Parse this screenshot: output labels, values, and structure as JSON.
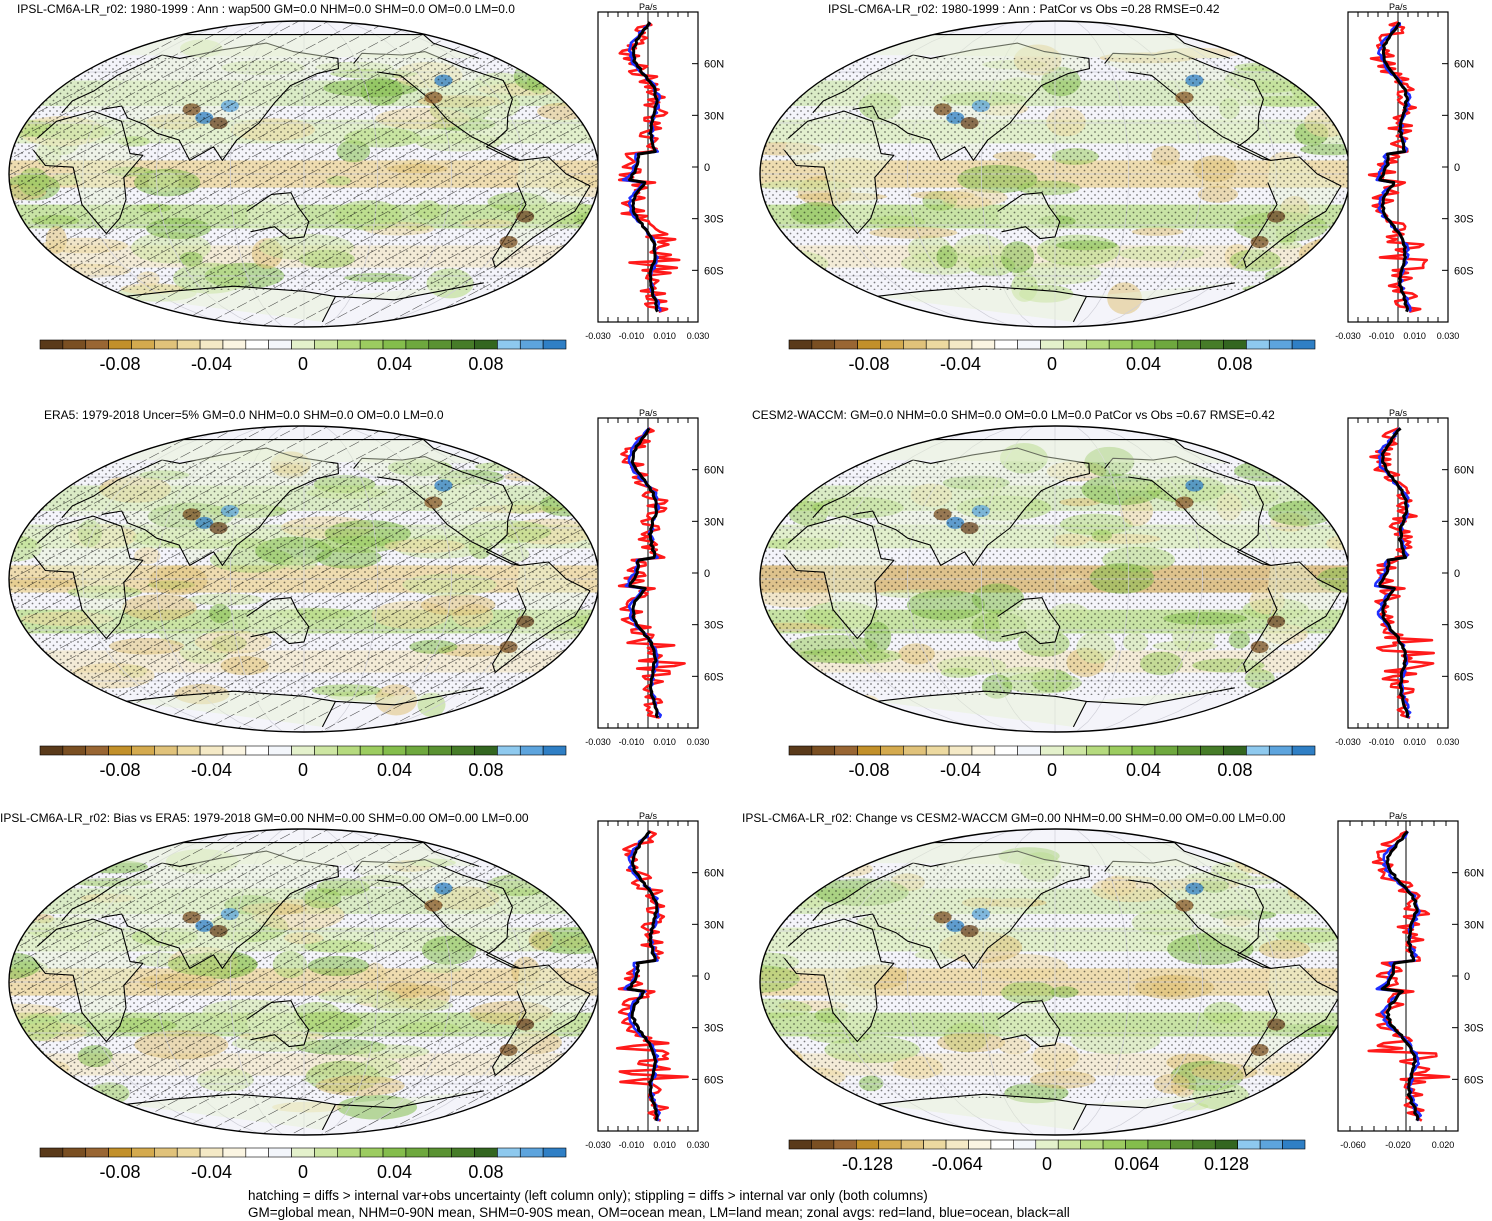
{
  "panels": [
    {
      "title": "IPSL-CM6A-LR_r02: 1980-1999 : Ann : wap500 GM=0.0 NHM=0.0 SHM=0.0 OM=0.0 LM=0.0",
      "hatch": true,
      "cbar_ticks": [
        "-0.08",
        "-0.04",
        "0",
        "0.04",
        "0.08"
      ],
      "zonal_unit": "Pa/s",
      "zonal_xticks": [
        "-0.030",
        "-0.010",
        "0.010",
        "0.030"
      ],
      "zonal_lat_labels": [
        "60N",
        "30N",
        "0",
        "30S",
        "60S"
      ]
    },
    {
      "title": "IPSL-CM6A-LR_r02: 1980-1999 : Ann : PatCor vs Obs =0.28 RMSE=0.42",
      "hatch": false,
      "cbar_ticks": [
        "-0.08",
        "-0.04",
        "0",
        "0.04",
        "0.08"
      ],
      "zonal_unit": "Pa/s",
      "zonal_xticks": [
        "-0.030",
        "-0.010",
        "0.010",
        "0.030"
      ],
      "zonal_lat_labels": [
        "60N",
        "30N",
        "0",
        "30S",
        "60S"
      ]
    },
    {
      "title": "ERA5: 1979-2018 Uncer=5% GM=0.0 NHM=0.0 SHM=0.0 OM=0.0 LM=0.0",
      "hatch": true,
      "cbar_ticks": [
        "-0.08",
        "-0.04",
        "0",
        "0.04",
        "0.08"
      ],
      "zonal_unit": "Pa/s",
      "zonal_xticks": [
        "-0.030",
        "-0.010",
        "0.010",
        "0.030"
      ],
      "zonal_lat_labels": [
        "60N",
        "30N",
        "0",
        "30S",
        "60S"
      ]
    },
    {
      "title": "CESM2-WACCM: GM=0.0 NHM=0.0 SHM=0.0 OM=0.0 LM=0.0 PatCor vs Obs =0.67 RMSE=0.42",
      "hatch": false,
      "cbar_ticks": [
        "-0.08",
        "-0.04",
        "0",
        "0.04",
        "0.08"
      ],
      "zonal_unit": "Pa/s",
      "zonal_xticks": [
        "-0.030",
        "-0.010",
        "0.010",
        "0.030"
      ],
      "zonal_lat_labels": [
        "60N",
        "30N",
        "0",
        "30S",
        "60S"
      ]
    },
    {
      "title": "IPSL-CM6A-LR_r02: Bias vs ERA5: 1979-2018 GM=0.00 NHM=0.00 SHM=0.00 OM=0.00 LM=0.00",
      "hatch": true,
      "cbar_ticks": [
        "-0.08",
        "-0.04",
        "0",
        "0.04",
        "0.08"
      ],
      "zonal_unit": "Pa/s",
      "zonal_xticks": [
        "-0.030",
        "-0.010",
        "0.010",
        "0.030"
      ],
      "zonal_lat_labels": [
        "60N",
        "30N",
        "0",
        "30S",
        "60S"
      ]
    },
    {
      "title": "IPSL-CM6A-LR_r02: Change vs CESM2-WACCM GM=0.00 NHM=0.00 SHM=0.00 OM=0.00 LM=0.00",
      "hatch": false,
      "cbar_ticks": [
        "-0.128",
        "-0.064",
        "0",
        "0.064",
        "0.128"
      ],
      "zonal_unit": "Pa/s",
      "zonal_xticks": [
        "-0.060",
        "-0.020",
        "0.020"
      ],
      "zonal_lat_labels": [
        "60N",
        "30N",
        "0",
        "30S",
        "60S"
      ]
    }
  ],
  "colorbar": {
    "colors": [
      "#5a3a1a",
      "#7a4f22",
      "#996633",
      "#c2902a",
      "#d4aa4e",
      "#e0c27a",
      "#ecd9a0",
      "#f4e9c6",
      "#fbf5e2",
      "#ffffff",
      "#f3f6fb",
      "#e4f1cc",
      "#cde6a2",
      "#b5da7e",
      "#9ccc60",
      "#84bd4c",
      "#6ea83e",
      "#5a9232",
      "#467c28",
      "#336620",
      "#8ec9ee",
      "#5da4dd",
      "#2f7fc5"
    ]
  },
  "zonal_colors": {
    "land": "#ff1a1a",
    "ocean": "#1f2fff",
    "all": "#000000"
  },
  "chart_data": {
    "type": "heatmap",
    "variable": "wap500",
    "zonal_unit": "Pa/s",
    "zonal_series": [
      {
        "name": "land",
        "color": "#ff1a1a"
      },
      {
        "name": "ocean",
        "color": "#1f2fff"
      },
      {
        "name": "all",
        "color": "#000000"
      }
    ]
  },
  "footer": {
    "line1": "hatching = diffs > internal var+obs uncertainty (left column only); stippling = diffs > internal var only (both columns)",
    "line2": "GM=global mean, NHM=0-90N mean, SHM=0-90S mean, OM=ocean mean, LM=land mean; zonal avgs: red=land, blue=ocean, black=all"
  }
}
